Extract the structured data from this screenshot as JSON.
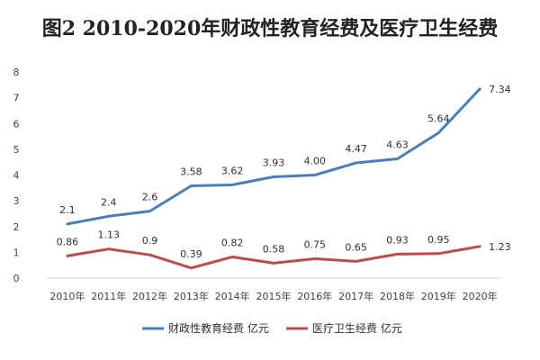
{
  "chart_data": {
    "type": "line",
    "title": "图2 2010-2020年财政性教育经费及医疗卫生经费",
    "categories": [
      "2010年",
      "2011年",
      "2012年",
      "2013年",
      "2014年",
      "2015年",
      "2016年",
      "2017年",
      "2018年",
      "2019年",
      "2020年"
    ],
    "ylim": [
      0,
      8
    ],
    "yticks": [
      "0",
      "1",
      "2",
      "3",
      "4",
      "5",
      "6",
      "7",
      "8"
    ],
    "grid": false,
    "legend_position": "bottom",
    "series": [
      {
        "name": "财政性教育经费 亿元",
        "color": "#4A7EBB",
        "values": [
          2.1,
          2.4,
          2.6,
          3.58,
          3.62,
          3.93,
          4.0,
          4.47,
          4.63,
          5.64,
          7.34
        ],
        "labels": [
          "2.1",
          "2.4",
          "2.6",
          "3.58",
          "3.62",
          "3.93",
          "4.00",
          "4.47",
          "4.63",
          "5.64",
          "7.34"
        ]
      },
      {
        "name": "医疗卫生经费 亿元",
        "color": "#BE4B48",
        "values": [
          0.86,
          1.13,
          0.9,
          0.39,
          0.82,
          0.58,
          0.75,
          0.65,
          0.93,
          0.95,
          1.23
        ],
        "labels": [
          "0.86",
          "1.13",
          "0.9",
          "0.39",
          "0.82",
          "0.58",
          "0.75",
          "0.65",
          "0.93",
          "0.95",
          "1.23"
        ]
      }
    ]
  }
}
